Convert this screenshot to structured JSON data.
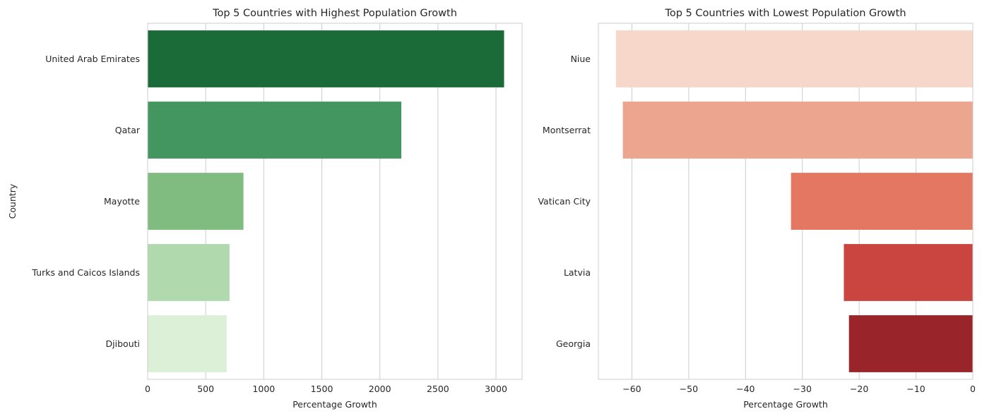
{
  "chart_data": [
    {
      "type": "bar",
      "orientation": "horizontal",
      "title": "Top 5 Countries with Highest Population Growth",
      "xlabel": "Percentage Growth",
      "ylabel": "Country",
      "categories": [
        "United Arab Emirates",
        "Qatar",
        "Mayotte",
        "Turks and Caicos Islands",
        "Djibouti"
      ],
      "values": [
        3070,
        2185,
        825,
        705,
        680
      ],
      "colors": [
        "#1a6b38",
        "#449660",
        "#80bb80",
        "#b1d9ae",
        "#dcf0d8"
      ],
      "xlim": [
        0,
        3225
      ],
      "xticks": [
        0,
        500,
        1000,
        1500,
        2000,
        2500,
        3000
      ],
      "xtick_labels": [
        "0",
        "500",
        "1000",
        "1500",
        "2000",
        "2500",
        "3000"
      ],
      "grid": true,
      "grid_axis": "x"
    },
    {
      "type": "bar",
      "orientation": "horizontal",
      "title": "Top 5 Countries with Lowest Population Growth",
      "xlabel": "Percentage Growth",
      "ylabel": "",
      "categories": [
        "Niue",
        "Montserrat",
        "Vatican City",
        "Latvia",
        "Georgia"
      ],
      "values": [
        -62.8,
        -61.6,
        -32.0,
        -22.7,
        -21.8
      ],
      "colors": [
        "#f7d7ca",
        "#eca690",
        "#e37762",
        "#ca4440",
        "#99252b"
      ],
      "xlim": [
        -65.9,
        0
      ],
      "xticks": [
        -60,
        -50,
        -40,
        -30,
        -20,
        -10,
        0
      ],
      "xtick_labels": [
        "−60",
        "−50",
        "−40",
        "−30",
        "−20",
        "−10",
        "0"
      ],
      "grid": true,
      "grid_axis": "x"
    }
  ]
}
